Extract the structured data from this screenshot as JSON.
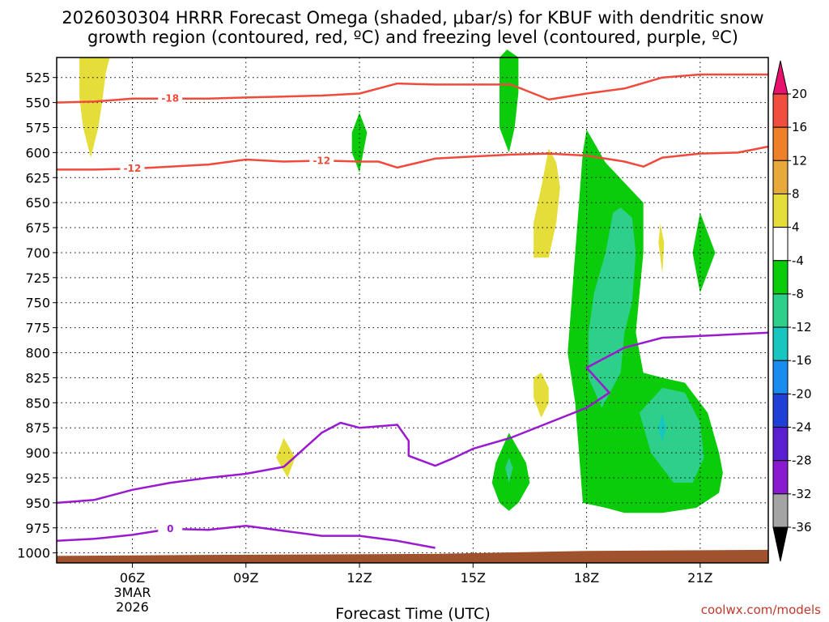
{
  "chart_data": {
    "type": "heatmap",
    "title_line1": "2026030304 HRRR Forecast Omega (shaded, μbar/s) for KBUF with dendritic snow",
    "title_line2": "growth region (contoured, red, ºC) and freezing level (contoured, purple, ºC)",
    "xlabel": "Forecast Time (UTC)",
    "credit": "coolwx.com/models",
    "x_range": [
      4,
      22.8
    ],
    "y_range": [
      505,
      1010
    ],
    "x_ticks": [
      {
        "hour": 6,
        "label": "06Z",
        "sub1": "3MAR",
        "sub2": "2026"
      },
      {
        "hour": 9,
        "label": "09Z"
      },
      {
        "hour": 12,
        "label": "12Z"
      },
      {
        "hour": 15,
        "label": "15Z"
      },
      {
        "hour": 18,
        "label": "18Z"
      },
      {
        "hour": 21,
        "label": "21Z"
      }
    ],
    "y_ticks": [
      "525",
      "550",
      "575",
      "600",
      "625",
      "650",
      "675",
      "700",
      "725",
      "750",
      "775",
      "800",
      "825",
      "850",
      "875",
      "900",
      "925",
      "950",
      "975",
      "1000"
    ],
    "colorbar": {
      "labels": [
        "20",
        "16",
        "12",
        "8",
        "4",
        "-4",
        "-8",
        "-12",
        "-16",
        "-20",
        "-24",
        "-28",
        "-32",
        "-36"
      ],
      "colors": {
        "c20": "#e8116e",
        "c16": "#f04e3e",
        "c12": "#f07f2a",
        "c8": "#e6a93a",
        "c4": "#e5dd3a",
        "white": "#ffffff",
        "m4": "#0acc0a",
        "m8": "#2dcf8a",
        "m12": "#18c6c0",
        "m16": "#1a8cf0",
        "m20": "#1f3fd6",
        "m24": "#5a1fd1",
        "m28": "#8a1ad0",
        "m32": "#a4a4a4",
        "m36": "#000000"
      }
    },
    "contours": {
      "dgz_color": "#f04a3c",
      "freezing_color": "#9a1ad0",
      "minus18_label": "-18",
      "minus12_label_a": "-12",
      "minus12_label_b": "-12",
      "zero_label": "0",
      "minus18": [
        [
          4.0,
          550
        ],
        [
          5.0,
          549
        ],
        [
          6.0,
          546
        ],
        [
          7.0,
          546
        ],
        [
          8.0,
          546
        ],
        [
          9.0,
          545
        ],
        [
          10.0,
          544
        ],
        [
          11.0,
          543
        ],
        [
          12.0,
          541
        ],
        [
          13.0,
          531
        ],
        [
          14.0,
          532
        ],
        [
          15.0,
          532
        ],
        [
          16.0,
          532
        ],
        [
          17.0,
          547
        ],
        [
          18.0,
          541
        ],
        [
          19.0,
          536
        ],
        [
          20.0,
          525
        ],
        [
          21.0,
          522
        ],
        [
          22.0,
          522
        ],
        [
          22.8,
          522
        ]
      ],
      "minus12": [
        [
          4.0,
          617
        ],
        [
          5.0,
          617
        ],
        [
          6.0,
          616
        ],
        [
          7.0,
          614
        ],
        [
          8.0,
          612
        ],
        [
          9.0,
          607
        ],
        [
          10.0,
          609
        ],
        [
          11.0,
          608
        ],
        [
          12.0,
          609
        ],
        [
          12.5,
          609
        ],
        [
          13.0,
          615
        ],
        [
          14.0,
          606
        ],
        [
          15.0,
          604
        ],
        [
          16.0,
          602
        ],
        [
          17.0,
          601
        ],
        [
          18.0,
          603
        ],
        [
          19.0,
          609
        ],
        [
          19.5,
          614
        ],
        [
          20.0,
          605
        ],
        [
          21.0,
          601
        ],
        [
          22.0,
          600
        ],
        [
          22.8,
          594
        ]
      ],
      "zero_lower": [
        [
          4.0,
          988
        ],
        [
          5.0,
          986
        ],
        [
          6.0,
          982
        ],
        [
          7.0,
          976
        ],
        [
          8.0,
          977
        ],
        [
          9.0,
          973
        ],
        [
          10.0,
          978
        ],
        [
          11.0,
          983
        ],
        [
          12.0,
          983
        ],
        [
          13.0,
          988
        ],
        [
          14.0,
          995
        ]
      ],
      "zero_upper": [
        [
          4.0,
          950
        ],
        [
          5.0,
          947
        ],
        [
          6.0,
          937
        ],
        [
          7.0,
          930
        ],
        [
          8.0,
          925
        ],
        [
          9.0,
          921
        ],
        [
          10.0,
          914
        ],
        [
          10.5,
          897
        ],
        [
          11.0,
          880
        ],
        [
          11.5,
          870
        ],
        [
          12.0,
          875
        ],
        [
          13.0,
          872
        ],
        [
          13.3,
          888
        ],
        [
          13.3,
          903
        ],
        [
          14.0,
          913
        ],
        [
          14.5,
          905
        ],
        [
          15.0,
          896
        ],
        [
          16.0,
          885
        ],
        [
          17.0,
          870
        ],
        [
          18.0,
          855
        ],
        [
          18.6,
          840
        ],
        [
          18.0,
          815
        ],
        [
          19.0,
          795
        ],
        [
          20.0,
          785
        ],
        [
          22.8,
          780
        ]
      ]
    },
    "omega_regions": [
      {
        "color": "c4",
        "points": [
          [
            4.6,
            505
          ],
          [
            5.4,
            505
          ],
          [
            5.3,
            520
          ],
          [
            5.2,
            550
          ],
          [
            5.1,
            575
          ],
          [
            4.9,
            605
          ],
          [
            4.7,
            575
          ],
          [
            4.6,
            545
          ]
        ]
      },
      {
        "color": "c4",
        "points": [
          [
            17.0,
            596
          ],
          [
            17.2,
            610
          ],
          [
            17.3,
            635
          ],
          [
            17.2,
            670
          ],
          [
            17.0,
            705
          ],
          [
            16.6,
            705
          ],
          [
            16.6,
            670
          ],
          [
            16.8,
            635
          ]
        ]
      },
      {
        "color": "c4",
        "points": [
          [
            16.8,
            820
          ],
          [
            17.0,
            835
          ],
          [
            17.0,
            850
          ],
          [
            16.8,
            865
          ],
          [
            16.6,
            845
          ],
          [
            16.6,
            825
          ]
        ]
      },
      {
        "color": "c4",
        "points": [
          [
            10.0,
            885
          ],
          [
            10.3,
            905
          ],
          [
            10.1,
            925
          ],
          [
            9.8,
            905
          ]
        ]
      },
      {
        "color": "c4",
        "points": [
          [
            19.95,
            671
          ],
          [
            20.05,
            690
          ],
          [
            20.0,
            721
          ],
          [
            19.9,
            690
          ]
        ]
      },
      {
        "color": "m4",
        "points": [
          [
            15.9,
            497
          ],
          [
            16.2,
            505
          ],
          [
            16.2,
            540
          ],
          [
            16.1,
            575
          ],
          [
            15.95,
            600
          ],
          [
            15.7,
            575
          ],
          [
            15.7,
            540
          ],
          [
            15.7,
            505
          ]
        ]
      },
      {
        "color": "m4",
        "points": [
          [
            12.0,
            560
          ],
          [
            12.2,
            580
          ],
          [
            12.1,
            600
          ],
          [
            12.0,
            620
          ],
          [
            11.8,
            600
          ],
          [
            11.8,
            580
          ]
        ]
      },
      {
        "color": "m4",
        "points": [
          [
            21.0,
            660
          ],
          [
            21.4,
            700
          ],
          [
            21.0,
            740
          ],
          [
            20.8,
            700
          ]
        ]
      },
      {
        "color": "m4",
        "points": [
          [
            15.95,
            880
          ],
          [
            16.4,
            910
          ],
          [
            16.5,
            930
          ],
          [
            16.2,
            950
          ],
          [
            15.95,
            958
          ],
          [
            15.7,
            950
          ],
          [
            15.5,
            930
          ],
          [
            15.6,
            910
          ]
        ]
      },
      {
        "color": "m4",
        "points": [
          [
            18.0,
            577
          ],
          [
            18.5,
            610
          ],
          [
            19.0,
            630
          ],
          [
            19.5,
            650
          ],
          [
            19.5,
            700
          ],
          [
            19.4,
            740
          ],
          [
            19.3,
            780
          ],
          [
            19.5,
            820
          ],
          [
            20.0,
            825
          ],
          [
            20.6,
            830
          ],
          [
            21.2,
            860
          ],
          [
            21.5,
            900
          ],
          [
            21.6,
            920
          ],
          [
            21.5,
            940
          ],
          [
            20.9,
            955
          ],
          [
            20.0,
            960
          ],
          [
            19.0,
            960
          ],
          [
            18.5,
            955
          ],
          [
            17.9,
            950
          ],
          [
            17.8,
            900
          ],
          [
            17.7,
            850
          ],
          [
            17.5,
            800
          ],
          [
            17.6,
            750
          ],
          [
            17.7,
            700
          ],
          [
            17.8,
            650
          ],
          [
            17.9,
            600
          ]
        ]
      },
      {
        "color": "m8",
        "points": [
          [
            18.9,
            655
          ],
          [
            19.2,
            665
          ],
          [
            19.3,
            700
          ],
          [
            19.2,
            750
          ],
          [
            19.0,
            780
          ],
          [
            18.9,
            820
          ],
          [
            18.4,
            855
          ],
          [
            18.05,
            825
          ],
          [
            18.05,
            780
          ],
          [
            18.2,
            740
          ],
          [
            18.5,
            700
          ],
          [
            18.7,
            660
          ]
        ]
      },
      {
        "color": "m8",
        "points": [
          [
            20.0,
            835
          ],
          [
            20.6,
            840
          ],
          [
            21.0,
            870
          ],
          [
            21.1,
            905
          ],
          [
            20.8,
            930
          ],
          [
            20.3,
            930
          ],
          [
            19.7,
            900
          ],
          [
            19.4,
            860
          ]
        ]
      },
      {
        "color": "m12",
        "points": [
          [
            20.0,
            860
          ],
          [
            20.1,
            875
          ],
          [
            20.0,
            890
          ],
          [
            19.9,
            875
          ]
        ]
      },
      {
        "color": "m8",
        "points": [
          [
            15.95,
            905
          ],
          [
            16.05,
            915
          ],
          [
            15.95,
            930
          ],
          [
            15.85,
            915
          ]
        ]
      }
    ],
    "terrain_color": "#a0522d"
  }
}
